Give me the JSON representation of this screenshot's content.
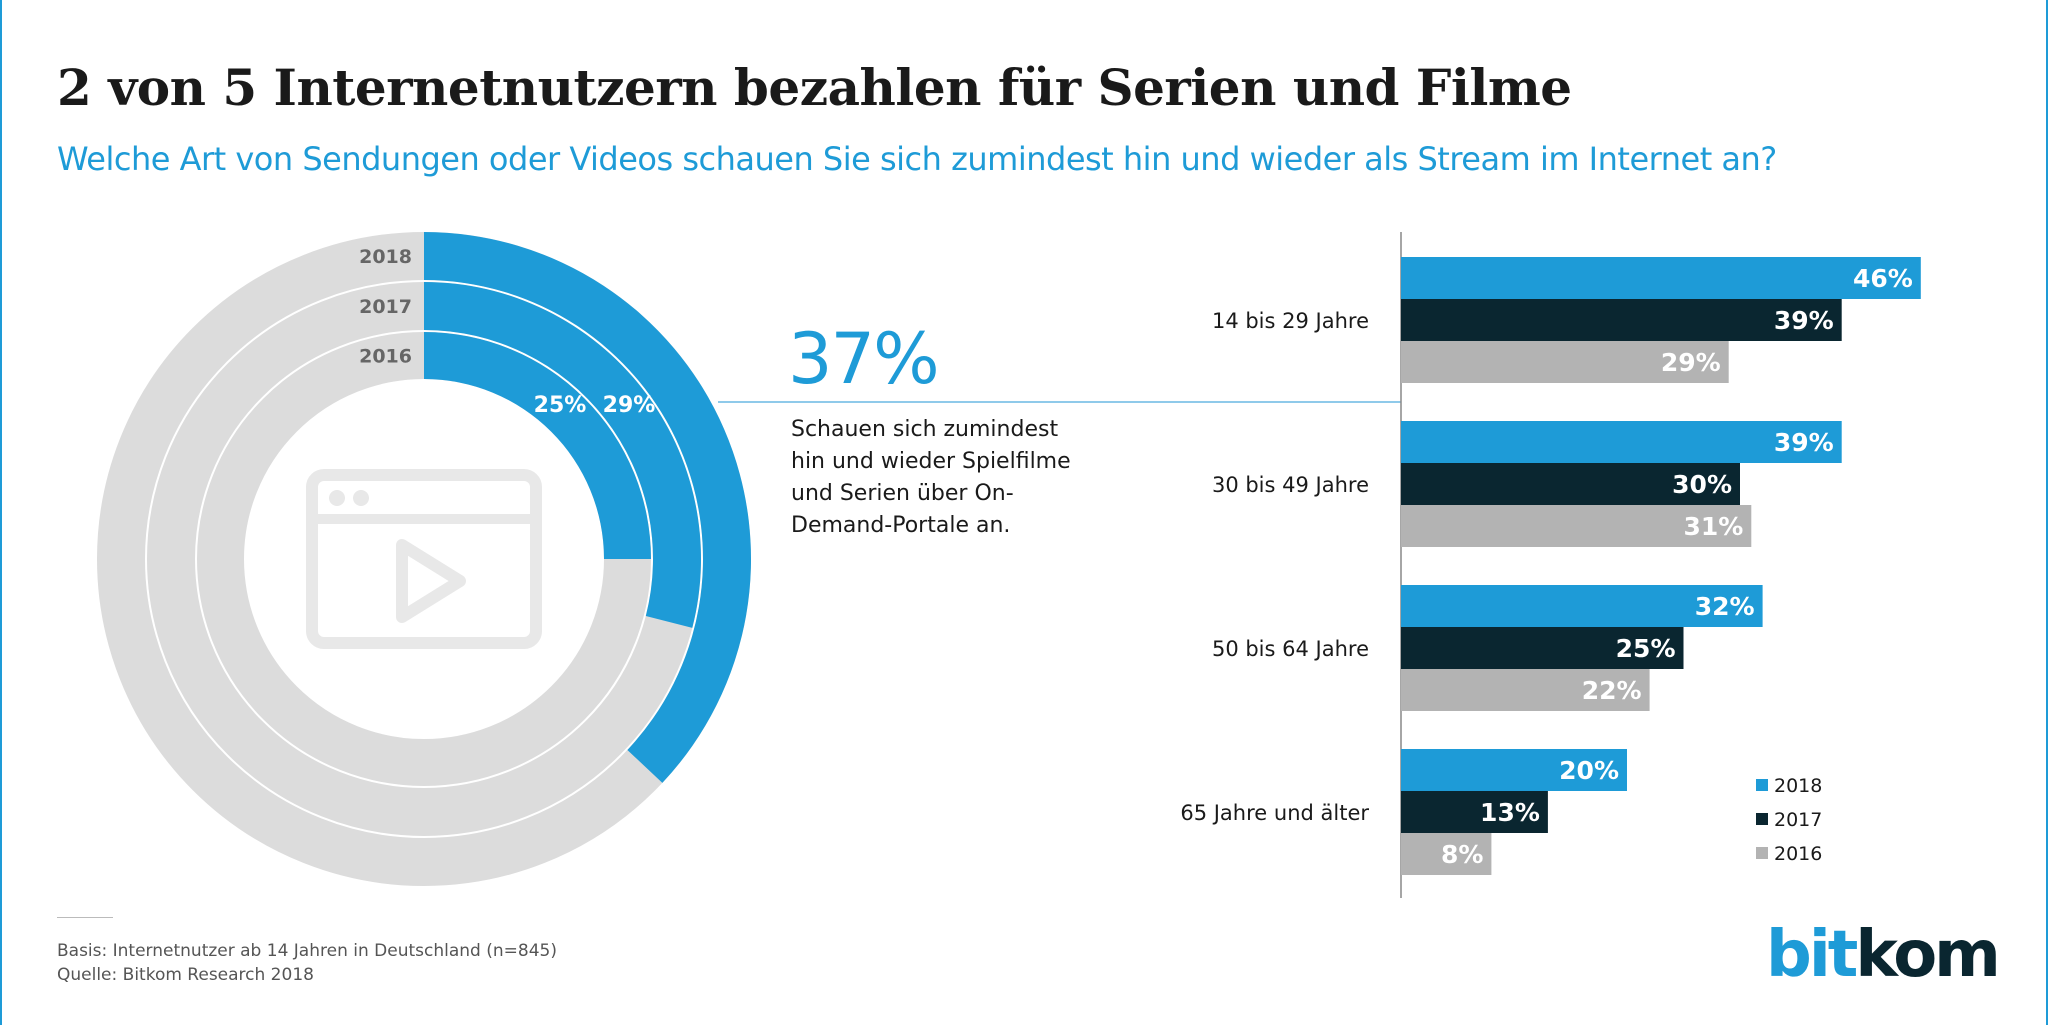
{
  "title": "2 von 5 Internetnutzern bezahlen für Serien und Filme",
  "subtitle": "Welche Art von Sendungen oder Videos schauen Sie sich zumindest hin und wieder als Stream im Internet an?",
  "highlight": {
    "value": "37%",
    "description": "Schauen sich zumindest hin und wieder Spielfilme und Serien über On-Demand-Portale an."
  },
  "colors": {
    "2018": "#1e9bd7",
    "2017": "#0a2630",
    "2016": "#b3b3b3",
    "ring_bg": "#dcdcdc",
    "icon": "#e8e8e8"
  },
  "chart_data": [
    {
      "type": "donut",
      "rings": [
        {
          "year": "2018",
          "value": 37,
          "label": ""
        },
        {
          "year": "2017",
          "value": 29,
          "label": "29%"
        },
        {
          "year": "2016",
          "value": 25,
          "label": "25%"
        }
      ],
      "center_icon": "video-player-icon"
    },
    {
      "type": "bar",
      "orientation": "horizontal",
      "categories": [
        "14 bis 29 Jahre",
        "30  bis 49 Jahre",
        "50 bis 64 Jahre",
        "65 Jahre und älter"
      ],
      "series": [
        {
          "name": "2018",
          "values": [
            46,
            39,
            32,
            20
          ]
        },
        {
          "name": "2017",
          "values": [
            39,
            30,
            25,
            13
          ]
        },
        {
          "name": "2016",
          "values": [
            29,
            31,
            22,
            8
          ]
        }
      ],
      "unit": "%",
      "legend": "bottom-right"
    }
  ],
  "footer": {
    "basis": "Basis: Internetnutzer ab 14 Jahren in Deutschland (n=845)",
    "source": "Quelle: Bitkom Research 2018"
  },
  "logo": {
    "part1": "bit",
    "part2": "kom"
  }
}
